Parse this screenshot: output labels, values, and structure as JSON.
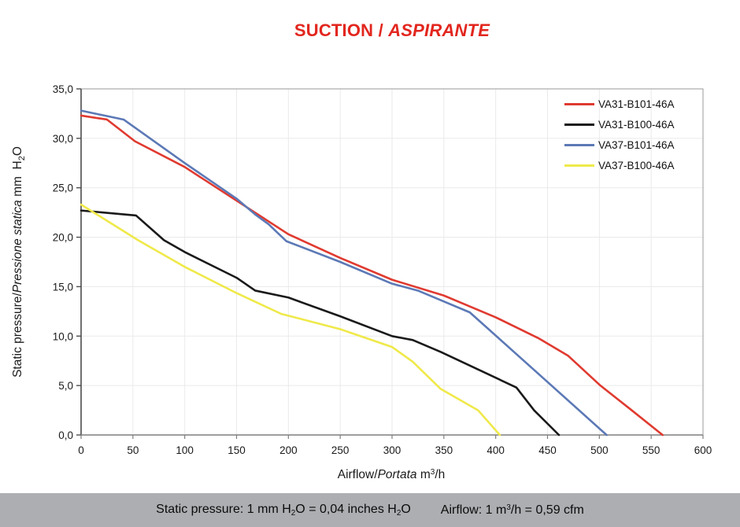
{
  "title": {
    "normal": "SUCTION /",
    "italic": "ASPIRANTE",
    "color": "#e2261e"
  },
  "footer": {
    "sp_a": "Static pressure: 1 mm H",
    "sp_sub_a": "2",
    "sp_b": "O = 0,04 inches H",
    "sp_sub_b": "2",
    "sp_c": "O",
    "af_a": "Airflow: 1 m",
    "af_sup": "3",
    "af_b": "/h = 0,59 cfm",
    "bar_color": "#acaeb1"
  },
  "chart_data": {
    "type": "line",
    "title": "SUCTION / ASPIRANTE",
    "xlabel": "Airflow/Portata m³/h",
    "ylabel": "Static pressure/Pressione statica mm H₂O",
    "xlim": [
      0,
      600
    ],
    "ylim": [
      0,
      35
    ],
    "x_tick_step": 50,
    "y_tick_step": 5,
    "x_tick_labels": [
      "0",
      "50",
      "100",
      "150",
      "200",
      "250",
      "300",
      "350",
      "400",
      "450",
      "500",
      "550",
      "600"
    ],
    "y_tick_labels": [
      "0,0",
      "5,0",
      "10,0",
      "15,0",
      "20,0",
      "25,0",
      "30,0",
      "35,0"
    ],
    "grid": true,
    "grid_color": "#eaeaea",
    "axis_color_left": "#4d4d4d",
    "axis_color_bottom": "#7f7f7f",
    "border_color": "#999999",
    "legend_position": "top-right",
    "label_parts": {
      "x_normal": "Airflow/",
      "x_italic": "Portata",
      "x_unit_a": " m",
      "x_sup": "3",
      "x_unit_b": "/h",
      "y_normal": "Static pressure/",
      "y_italic": "Pressione statica",
      "y_unit_a": " mm  H",
      "y_sub": "2",
      "y_unit_b": "O"
    },
    "series": [
      {
        "name": "VA31-B101-46A",
        "color": "#e03a30",
        "points": [
          [
            0,
            32.3
          ],
          [
            25,
            31.9
          ],
          [
            52,
            29.7
          ],
          [
            100,
            27.1
          ],
          [
            150,
            23.7
          ],
          [
            200,
            20.3
          ],
          [
            250,
            17.9
          ],
          [
            300,
            15.7
          ],
          [
            350,
            14.1
          ],
          [
            400,
            11.9
          ],
          [
            441,
            9.8
          ],
          [
            470,
            8.0
          ],
          [
            501,
            5.0
          ],
          [
            530,
            2.6
          ],
          [
            561,
            0
          ]
        ]
      },
      {
        "name": "VA31-B100-46A",
        "color": "#1a1a1a",
        "points": [
          [
            0,
            22.7
          ],
          [
            53,
            22.2
          ],
          [
            80,
            19.7
          ],
          [
            100,
            18.5
          ],
          [
            150,
            15.9
          ],
          [
            168,
            14.6
          ],
          [
            200,
            13.9
          ],
          [
            250,
            12.0
          ],
          [
            300,
            10.0
          ],
          [
            320,
            9.6
          ],
          [
            347,
            8.4
          ],
          [
            420,
            4.8
          ],
          [
            437,
            2.5
          ],
          [
            461,
            0
          ]
        ]
      },
      {
        "name": "VA37-B101-46A",
        "color": "#5c79b6",
        "points": [
          [
            0,
            32.8
          ],
          [
            41,
            31.9
          ],
          [
            100,
            27.5
          ],
          [
            150,
            23.9
          ],
          [
            168,
            22.3
          ],
          [
            181,
            21.3
          ],
          [
            198,
            19.6
          ],
          [
            250,
            17.5
          ],
          [
            300,
            15.3
          ],
          [
            325,
            14.6
          ],
          [
            375,
            12.4
          ],
          [
            440,
            6.3
          ],
          [
            507,
            0
          ]
        ]
      },
      {
        "name": "VA37-B100-46A",
        "color": "#efe94a",
        "points": [
          [
            0,
            23.3
          ],
          [
            55,
            19.7
          ],
          [
            100,
            17.0
          ],
          [
            150,
            14.35
          ],
          [
            193,
            12.25
          ],
          [
            250,
            10.7
          ],
          [
            300,
            8.9
          ],
          [
            320,
            7.4
          ],
          [
            347,
            4.65
          ],
          [
            383,
            2.5
          ],
          [
            404,
            0
          ]
        ]
      }
    ]
  }
}
